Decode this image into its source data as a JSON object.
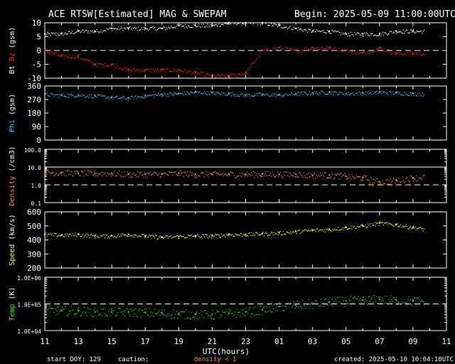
{
  "header": {
    "title": "ACE RTSW[Estimated] MAG & SWEPAM",
    "begin": "Begin: 2025-05-09 11:00:00UTC"
  },
  "footer": {
    "start_doy": "start DOY: 129",
    "caution": "caution:",
    "density_note": "density < 1",
    "created": "created: 2025-05-10 10:04:10UTC"
  },
  "xaxis": {
    "label": "UTC(hours)",
    "ticks": [
      "11",
      "13",
      "15",
      "17",
      "19",
      "21",
      "23",
      "01",
      "03",
      "05",
      "07",
      "09",
      "11"
    ]
  },
  "colors": {
    "bt": "#ffffff",
    "bz": "#ff2020",
    "phi": "#3ec8ff",
    "density": "#ff9030",
    "speed": "#ffff30",
    "temp": "#30e030"
  },
  "chart_data": [
    {
      "type": "scatter",
      "ylabel_parts": [
        {
          "text": "Bt",
          "color": "#ffffff"
        },
        {
          "text": "Bz",
          "color": "#ff2020"
        },
        {
          "text": "(gsm)",
          "color": "#ffffff"
        }
      ],
      "ylim": [
        -10,
        10
      ],
      "yticks": [
        "10",
        "5",
        "0",
        "-5",
        "-10"
      ],
      "dashed_line": 0,
      "series": [
        {
          "name": "Bt",
          "x": [
            0,
            1,
            2,
            3,
            4,
            5,
            6,
            7,
            8,
            9,
            10,
            11,
            12,
            13,
            14,
            15,
            16,
            17,
            18,
            19,
            20,
            21,
            22,
            23
          ],
          "values": [
            6,
            6,
            7,
            7,
            8,
            8,
            8,
            8,
            9,
            9,
            9,
            10,
            10,
            10,
            9,
            8,
            7,
            7,
            6,
            6,
            6,
            7,
            7,
            7
          ]
        },
        {
          "name": "Bz",
          "x": [
            0,
            1,
            2,
            3,
            4,
            5,
            6,
            7,
            8,
            9,
            10,
            11,
            12,
            13,
            14,
            15,
            16,
            17,
            18,
            19,
            20,
            21,
            22,
            23
          ],
          "values": [
            0,
            -2,
            -2,
            -5,
            -5,
            -7,
            -7,
            -7,
            -7,
            -8,
            -9,
            -9,
            -8,
            0,
            1,
            0,
            1,
            1,
            0,
            -1,
            1,
            -1,
            -1,
            -1
          ]
        }
      ]
    },
    {
      "type": "scatter",
      "ylabel_parts": [
        {
          "text": "Phi",
          "color": "#3ec8ff"
        },
        {
          "text": "(gsm)",
          "color": "#ffffff"
        }
      ],
      "ylim": [
        0,
        360
      ],
      "yticks": [
        "360",
        "270",
        "180",
        "90",
        "0"
      ],
      "series": [
        {
          "name": "Phi",
          "x": [
            0,
            1,
            2,
            3,
            4,
            5,
            6,
            7,
            8,
            9,
            10,
            11,
            12,
            13,
            14,
            15,
            16,
            17,
            18,
            19,
            20,
            21,
            22,
            23
          ],
          "values": [
            305,
            300,
            300,
            295,
            285,
            280,
            295,
            305,
            310,
            320,
            315,
            310,
            300,
            305,
            300,
            310,
            315,
            320,
            310,
            315,
            320,
            315,
            310,
            305
          ]
        }
      ]
    },
    {
      "type": "scatter",
      "ylabel_parts": [
        {
          "text": "Density",
          "color": "#ff9030"
        },
        {
          "text": "(/cm3)",
          "color": "#ffffff"
        }
      ],
      "log": true,
      "ylim": [
        0.1,
        100
      ],
      "yticks": [
        "100.0",
        "10.0",
        "1.0",
        "0.1"
      ],
      "solid_line": 10,
      "dashed_line": 1,
      "series": [
        {
          "name": "Density",
          "x": [
            0,
            1,
            2,
            3,
            4,
            5,
            6,
            7,
            8,
            9,
            10,
            11,
            12,
            13,
            14,
            15,
            16,
            17,
            18,
            19,
            20,
            21,
            22,
            23
          ],
          "values": [
            5,
            5,
            4.5,
            4.5,
            4.5,
            4,
            4,
            4,
            4.5,
            4,
            4,
            4,
            4,
            4,
            4,
            4,
            3.5,
            3.5,
            3,
            2.5,
            1.5,
            1.8,
            2.5,
            3
          ]
        }
      ]
    },
    {
      "type": "scatter",
      "ylabel_parts": [
        {
          "text": "Speed",
          "color": "#ffff30"
        },
        {
          "text": "(km/s)",
          "color": "#ffffff"
        }
      ],
      "ylim": [
        200,
        600
      ],
      "yticks": [
        "600",
        "500",
        "400",
        "300",
        "200"
      ],
      "series": [
        {
          "name": "Speed",
          "x": [
            0,
            1,
            2,
            3,
            4,
            5,
            6,
            7,
            8,
            9,
            10,
            11,
            12,
            13,
            14,
            15,
            16,
            17,
            18,
            19,
            20,
            21,
            22,
            23
          ],
          "values": [
            440,
            435,
            440,
            430,
            430,
            440,
            430,
            420,
            425,
            430,
            430,
            440,
            440,
            445,
            450,
            460,
            470,
            475,
            490,
            500,
            520,
            510,
            490,
            470
          ]
        }
      ]
    },
    {
      "type": "scatter",
      "ylabel_parts": [
        {
          "text": "Temp",
          "color": "#30e030"
        },
        {
          "text": "(K)",
          "color": "#ffffff"
        }
      ],
      "log": true,
      "ylim": [
        10000,
        1000000
      ],
      "yticks": [
        "1.0E+06",
        "1.0E+05",
        "1.0E+04"
      ],
      "dashed_line": 100000,
      "series": [
        {
          "name": "Temp",
          "x": [
            0,
            1,
            2,
            3,
            4,
            5,
            6,
            7,
            8,
            9,
            10,
            11,
            12,
            13,
            14,
            15,
            16,
            17,
            18,
            19,
            20,
            21,
            22,
            23
          ],
          "values": [
            60000,
            55000,
            55000,
            50000,
            50000,
            50000,
            48000,
            45000,
            42000,
            42000,
            40000,
            45000,
            50000,
            60000,
            80000,
            90000,
            100000,
            120000,
            130000,
            140000,
            150000,
            140000,
            130000,
            130000
          ]
        }
      ]
    }
  ]
}
